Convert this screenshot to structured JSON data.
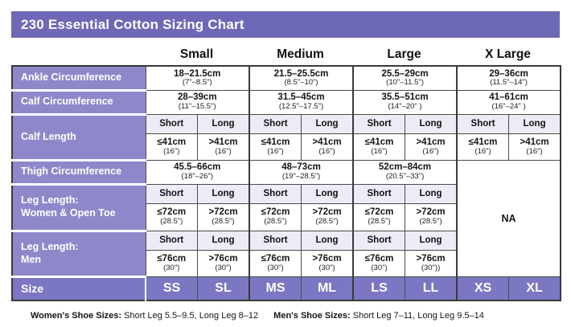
{
  "title": "230 Essential Cotton Sizing Chart",
  "size_headers": [
    "Small",
    "Medium",
    "Large",
    "X Large"
  ],
  "rows": {
    "ankle": {
      "label": "Ankle Circumference",
      "cells": [
        {
          "cm": "18–21.5cm",
          "in": "(7\"–8.5\")"
        },
        {
          "cm": "21.5–25.5cm",
          "in": "(8.5\"–10\")"
        },
        {
          "cm": "25.5–29cm",
          "in": "(10\"–11.5\")"
        },
        {
          "cm": "29–36cm",
          "in": "(11.5\"–14\")"
        }
      ]
    },
    "calf_circumference": {
      "label": "Calf Circumference",
      "cells": [
        {
          "cm": "28–39cm",
          "in": "(11\"–15.5\")"
        },
        {
          "cm": "31.5–45cm",
          "in": "(12.5\"–17.5\")"
        },
        {
          "cm": "35.5–51cm",
          "in": "(14\"–20\" )"
        },
        {
          "cm": "41–61cm",
          "in": "(16\"–24\" )"
        }
      ]
    },
    "calf_length": {
      "label": "Calf Length",
      "subheaders": [
        "Short",
        "Long",
        "Short",
        "Long",
        "Short",
        "Long",
        "Short",
        "Long"
      ],
      "cells": [
        {
          "cm": "≤41cm",
          "in": "(16\")"
        },
        {
          "cm": ">41cm",
          "in": "(16\")"
        },
        {
          "cm": "≤41cm",
          "in": "(16\")"
        },
        {
          "cm": ">41cm",
          "in": "(16\")"
        },
        {
          "cm": "≤41cm",
          "in": "(16\")"
        },
        {
          "cm": ">41cm",
          "in": "(16\")"
        },
        {
          "cm": "≤41cm",
          "in": "(16\")"
        },
        {
          "cm": ">41cm",
          "in": "(16\")"
        }
      ]
    },
    "thigh": {
      "label": "Thigh Circumference",
      "cells": [
        {
          "cm": "45.5–66cm",
          "in": "(18\"–26\")"
        },
        {
          "cm": "48–73cm",
          "in": "(19\"–28.5\")"
        },
        {
          "cm": "52cm–84cm",
          "in": "(20.5\"–33\")"
        }
      ]
    },
    "leg_women": {
      "label": "Leg Length:\nWomen & Open Toe",
      "subheaders": [
        "Short",
        "Long",
        "Short",
        "Long",
        "Short",
        "Long"
      ],
      "cells": [
        {
          "cm": "≤72cm",
          "in": "(28.5\")"
        },
        {
          "cm": ">72cm",
          "in": "(28.5\")"
        },
        {
          "cm": "≤72cm",
          "in": "(28.5\")"
        },
        {
          "cm": ">72cm",
          "in": "(28.5\")"
        },
        {
          "cm": "≤72cm",
          "in": "(28.5\")"
        },
        {
          "cm": ">72cm",
          "in": "(28.5\")"
        }
      ]
    },
    "leg_men": {
      "label": "Leg Length:\nMen",
      "subheaders": [
        "Short",
        "Long",
        "Short",
        "Long",
        "Short",
        "Long"
      ],
      "cells": [
        {
          "cm": "≤76cm",
          "in": "(30\")"
        },
        {
          "cm": ">76cm",
          "in": "(30\")"
        },
        {
          "cm": "≤76cm",
          "in": "(30\")"
        },
        {
          "cm": ">76cm",
          "in": "(30\")"
        },
        {
          "cm": "≤76cm",
          "in": "(30\")"
        },
        {
          "cm": ">76cm",
          "in": "(30\"))"
        }
      ]
    }
  },
  "na": "NA",
  "size_row": {
    "label": "Size",
    "codes": [
      "SS",
      "SL",
      "MS",
      "ML",
      "LS",
      "LL",
      "XS",
      "XL"
    ]
  },
  "footer": {
    "women_label": "Women's Shoe Sizes:",
    "women_text": " Short Leg 5.5–9.5, Long Leg 8–12",
    "men_label": "Men's Shoe Sizes:",
    "men_text": " Short Leg 7–11, Long Leg 9.5–14"
  },
  "colors": {
    "title_bar": "#6e69b6",
    "row_label": "#8e88cb",
    "size_row": "#7c77c2",
    "subheader_bg": "#edecf6",
    "border": "#4a4a4a"
  }
}
